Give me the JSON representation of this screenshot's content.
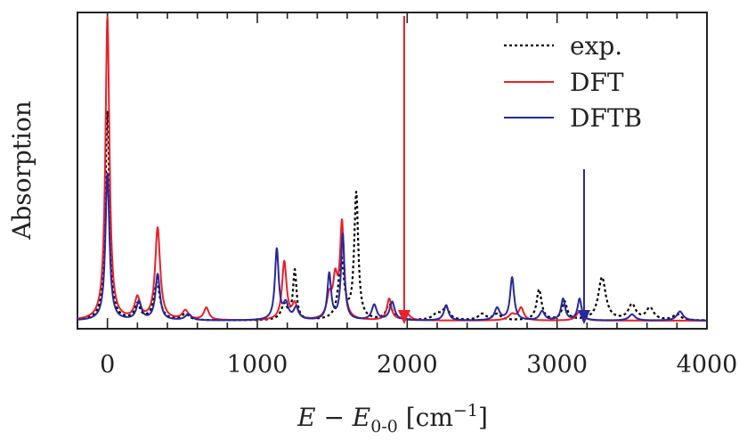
{
  "chart_data": {
    "type": "line",
    "ylabel": "Absorption",
    "xlabel": {
      "main": "E − E",
      "sub": "0-0",
      "unit_open": " [cm",
      "unit_sup": "−1",
      "unit_close": "]"
    },
    "xlim": [
      -200,
      4000
    ],
    "ylim": [
      0,
      1.0
    ],
    "xticks": [
      0,
      1000,
      2000,
      3000,
      4000
    ],
    "xtick_labels": [
      "0",
      "1000",
      "2000",
      "3000",
      "4000"
    ],
    "minor_xtick_step": 200,
    "grid": false,
    "legend_position": "top-right",
    "legend": [
      {
        "label": "exp.",
        "color": "#000000",
        "style": "dotted"
      },
      {
        "label": "DFT",
        "color": "#e8202a",
        "style": "solid"
      },
      {
        "label": "DFTB",
        "color": "#28289c",
        "style": "solid"
      }
    ],
    "series": [
      {
        "name": "exp.",
        "color": "#000000",
        "style": "dotted",
        "peaks": [
          [
            0,
            0.68,
            16
          ],
          [
            200,
            0.05,
            22
          ],
          [
            330,
            0.12,
            25
          ],
          [
            520,
            0.02,
            30
          ],
          [
            1180,
            0.05,
            25
          ],
          [
            1250,
            0.16,
            14
          ],
          [
            1560,
            0.2,
            22
          ],
          [
            1660,
            0.41,
            16
          ],
          [
            1880,
            0.05,
            25
          ],
          [
            2200,
            0.02,
            35
          ],
          [
            2260,
            0.04,
            25
          ],
          [
            2500,
            0.02,
            30
          ],
          [
            2600,
            0.02,
            30
          ],
          [
            2880,
            0.1,
            20
          ],
          [
            3050,
            0.06,
            20
          ],
          [
            3300,
            0.14,
            30
          ],
          [
            3500,
            0.05,
            30
          ],
          [
            3620,
            0.04,
            30
          ],
          [
            3800,
            0.02,
            30
          ]
        ]
      },
      {
        "name": "DFT",
        "color": "#e8202a",
        "style": "solid",
        "peaks": [
          [
            0,
            0.99,
            16
          ],
          [
            200,
            0.07,
            22
          ],
          [
            335,
            0.3,
            20
          ],
          [
            520,
            0.03,
            25
          ],
          [
            660,
            0.04,
            20
          ],
          [
            1180,
            0.19,
            18
          ],
          [
            1250,
            0.05,
            20
          ],
          [
            1480,
            0.07,
            20
          ],
          [
            1520,
            0.12,
            18
          ],
          [
            1565,
            0.31,
            16
          ],
          [
            1880,
            0.07,
            18
          ],
          [
            2000,
            0.02,
            25
          ],
          [
            2700,
            0.02,
            30
          ],
          [
            2760,
            0.04,
            20
          ],
          [
            3150,
            0.03,
            25
          ]
        ]
      },
      {
        "name": "DFTB",
        "color": "#28289c",
        "style": "solid",
        "peaks": [
          [
            0,
            0.48,
            16
          ],
          [
            210,
            0.06,
            20
          ],
          [
            335,
            0.15,
            18
          ],
          [
            540,
            0.02,
            25
          ],
          [
            1130,
            0.23,
            15
          ],
          [
            1190,
            0.05,
            20
          ],
          [
            1260,
            0.04,
            20
          ],
          [
            1480,
            0.15,
            15
          ],
          [
            1570,
            0.28,
            14
          ],
          [
            1780,
            0.05,
            20
          ],
          [
            1900,
            0.06,
            20
          ],
          [
            2260,
            0.05,
            18
          ],
          [
            2600,
            0.04,
            20
          ],
          [
            2700,
            0.14,
            16
          ],
          [
            2900,
            0.03,
            20
          ],
          [
            3040,
            0.07,
            16
          ],
          [
            3150,
            0.07,
            16
          ],
          [
            3500,
            0.02,
            25
          ],
          [
            3820,
            0.03,
            25
          ]
        ]
      }
    ],
    "annotations": [
      {
        "type": "arrow",
        "x": 1980,
        "from_y": 1.0,
        "to_y": 0.0,
        "color": "#e8202a"
      },
      {
        "type": "arrow",
        "x": 3180,
        "from_y": 0.5,
        "to_y": 0.0,
        "color": "#28289c"
      }
    ]
  }
}
